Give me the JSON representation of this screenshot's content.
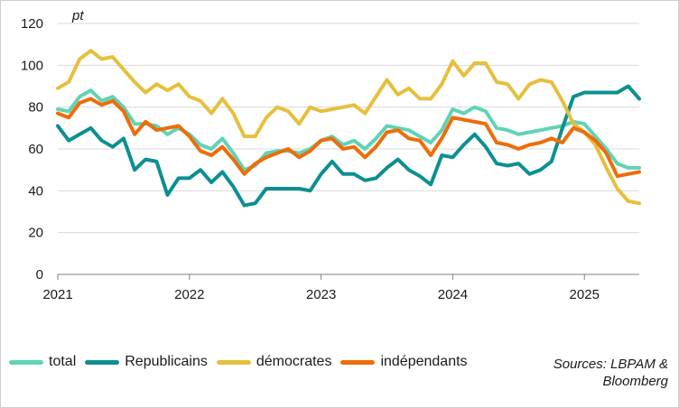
{
  "chart_data": {
    "type": "line",
    "ylabel": "pt",
    "ylim": [
      0,
      120
    ],
    "yticks": [
      0,
      20,
      40,
      60,
      80,
      100,
      120
    ],
    "xlim": [
      2021.0,
      2025.4167
    ],
    "xticks": [
      {
        "value": 2021,
        "label": "2021"
      },
      {
        "value": 2022,
        "label": "2022"
      },
      {
        "value": 2023,
        "label": "2023"
      },
      {
        "value": 2024,
        "label": "2024"
      },
      {
        "value": 2025,
        "label": "2025"
      }
    ],
    "grid": "horizontal",
    "legend_position": "bottom",
    "x": [
      2021.0,
      2021.0833,
      2021.1667,
      2021.25,
      2021.3333,
      2021.4167,
      2021.5,
      2021.5833,
      2021.6667,
      2021.75,
      2021.8333,
      2021.9167,
      2022.0,
      2022.0833,
      2022.1667,
      2022.25,
      2022.3333,
      2022.4167,
      2022.5,
      2022.5833,
      2022.6667,
      2022.75,
      2022.8333,
      2022.9167,
      2023.0,
      2023.0833,
      2023.1667,
      2023.25,
      2023.3333,
      2023.4167,
      2023.5,
      2023.5833,
      2023.6667,
      2023.75,
      2023.8333,
      2023.9167,
      2024.0,
      2024.0833,
      2024.1667,
      2024.25,
      2024.3333,
      2024.4167,
      2024.5,
      2024.5833,
      2024.6667,
      2024.75,
      2024.8333,
      2024.9167,
      2025.0,
      2025.0833,
      2025.1667,
      2025.25,
      2025.3333,
      2025.4167
    ],
    "series": [
      {
        "name": "total",
        "color": "#5fd3b5",
        "values": [
          79,
          78,
          85,
          88,
          83,
          85,
          80,
          72,
          72,
          71,
          67,
          70,
          67,
          62,
          60,
          65,
          58,
          50,
          52,
          58,
          59,
          59,
          58,
          60,
          64,
          66,
          62,
          64,
          60,
          65,
          71,
          70,
          69,
          66,
          63,
          69,
          79,
          77,
          80,
          78,
          70,
          69,
          67,
          68,
          69,
          70,
          71,
          73,
          72,
          66,
          60,
          53,
          51,
          51
        ]
      },
      {
        "name": "Republicains",
        "color": "#0c8f91",
        "values": [
          71,
          64,
          67,
          70,
          64,
          61,
          65,
          50,
          55,
          54,
          38,
          46,
          46,
          50,
          44,
          49,
          42,
          33,
          34,
          41,
          41,
          41,
          41,
          40,
          48,
          54,
          48,
          48,
          45,
          46,
          51,
          55,
          50,
          47,
          43,
          57,
          56,
          62,
          67,
          61,
          53,
          52,
          53,
          48,
          50,
          54,
          70,
          85,
          87,
          87,
          87,
          87,
          90,
          84
        ]
      },
      {
        "name": "démocrates",
        "color": "#e6bf3c",
        "values": [
          89,
          92,
          103,
          107,
          103,
          104,
          98,
          92,
          87,
          91,
          88,
          91,
          85,
          83,
          77,
          84,
          77,
          66,
          66,
          75,
          80,
          78,
          72,
          80,
          78,
          79,
          80,
          81,
          77,
          85,
          93,
          86,
          89,
          84,
          84,
          91,
          102,
          95,
          101,
          101,
          92,
          91,
          84,
          91,
          93,
          92,
          83,
          72,
          68,
          62,
          51,
          41,
          35,
          34
        ]
      },
      {
        "name": "indépendants",
        "color": "#ef6c0a",
        "values": [
          77,
          75,
          82,
          84,
          81,
          83,
          78,
          67,
          73,
          69,
          70,
          71,
          66,
          59,
          57,
          61,
          55,
          48,
          53,
          56,
          58,
          60,
          56,
          59,
          64,
          65,
          60,
          61,
          56,
          61,
          68,
          69,
          65,
          64,
          57,
          65,
          75,
          74,
          73,
          72,
          63,
          62,
          60,
          62,
          63,
          65,
          63,
          70,
          68,
          64,
          58,
          47,
          48,
          49
        ]
      }
    ]
  },
  "source_note": "Sources: LBPAM & Bloomberg"
}
